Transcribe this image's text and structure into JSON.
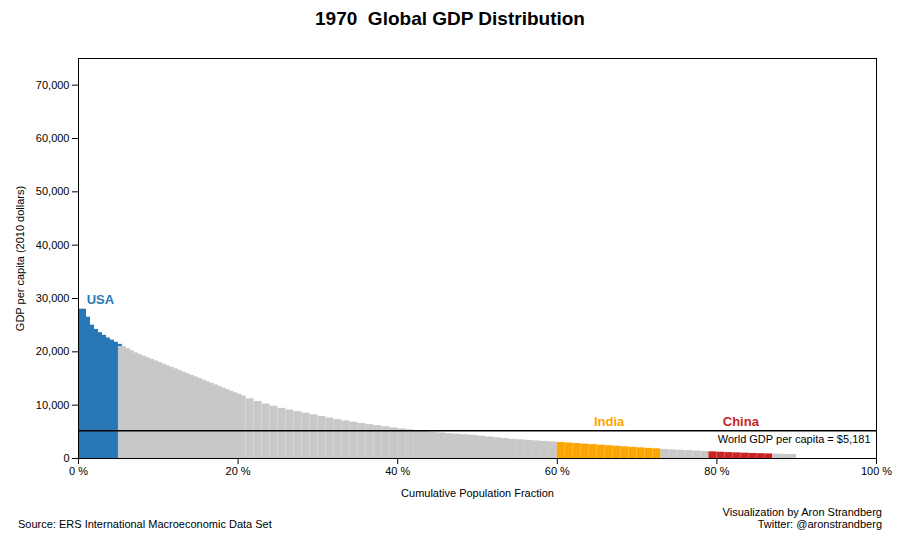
{
  "chart_data": {
    "type": "histogram",
    "title": "1970  Global GDP Distribution",
    "xlabel": "Cumulative Population Fraction",
    "ylabel": "GDP per capita (2010 dollars)",
    "x": [
      0.0,
      0.005,
      0.01,
      0.015,
      0.02,
      0.025,
      0.03,
      0.035,
      0.04,
      0.045,
      0.05,
      0.055,
      0.06,
      0.065,
      0.07,
      0.075,
      0.08,
      0.085,
      0.09,
      0.095,
      0.1,
      0.105,
      0.11,
      0.115,
      0.12,
      0.125,
      0.13,
      0.135,
      0.14,
      0.145,
      0.15,
      0.155,
      0.16,
      0.165,
      0.17,
      0.175,
      0.18,
      0.185,
      0.19,
      0.195,
      0.2,
      0.21,
      0.22,
      0.23,
      0.24,
      0.25,
      0.26,
      0.27,
      0.28,
      0.29,
      0.3,
      0.31,
      0.32,
      0.33,
      0.34,
      0.35,
      0.36,
      0.37,
      0.38,
      0.39,
      0.4,
      0.41,
      0.42,
      0.43,
      0.44,
      0.45,
      0.46,
      0.47,
      0.48,
      0.49,
      0.5,
      0.51,
      0.52,
      0.53,
      0.54,
      0.55,
      0.56,
      0.57,
      0.58,
      0.59,
      0.6,
      0.61,
      0.62,
      0.63,
      0.64,
      0.65,
      0.66,
      0.67,
      0.68,
      0.69,
      0.7,
      0.71,
      0.72,
      0.73,
      0.74,
      0.75,
      0.76,
      0.77,
      0.78,
      0.79,
      0.8,
      0.81,
      0.82,
      0.83,
      0.84,
      0.85,
      0.86,
      0.87,
      0.88,
      0.89
    ],
    "bin_width": 0.01,
    "values": [
      28000,
      26500,
      25000,
      24200,
      23600,
      23100,
      22600,
      22200,
      21800,
      21400,
      21000,
      20600,
      20200,
      19800,
      19500,
      19200,
      18900,
      18600,
      18300,
      18000,
      17700,
      17400,
      17100,
      16800,
      16500,
      16200,
      15900,
      15600,
      15300,
      15000,
      14700,
      14400,
      14100,
      13800,
      13500,
      13200,
      12900,
      12600,
      12300,
      12000,
      11700,
      11200,
      10700,
      10200,
      9800,
      9400,
      9100,
      8800,
      8500,
      8200,
      7900,
      7600,
      7300,
      7050,
      6800,
      6550,
      6350,
      6150,
      5950,
      5750,
      5550,
      5400,
      5250,
      5100,
      4950,
      4800,
      4650,
      4550,
      4450,
      4350,
      4200,
      4050,
      3900,
      3750,
      3600,
      3500,
      3400,
      3300,
      3200,
      3100,
      3000,
      2900,
      2800,
      2700,
      2600,
      2500,
      2400,
      2300,
      2200,
      2100,
      2000,
      1900,
      1800,
      1700,
      1600,
      1550,
      1480,
      1400,
      1320,
      1250,
      1180,
      1100,
      1050,
      1000,
      950,
      900,
      860,
      820,
      780,
      750
    ],
    "colors": [
      "#2878b8",
      "#2878b8",
      "#2878b8",
      "#2878b8",
      "#2878b8",
      "#2878b8",
      "#2878b8",
      "#2878b8",
      "#2878b8",
      "#2878b8",
      "#c8c8c8",
      "#c8c8c8",
      "#c8c8c8",
      "#c8c8c8",
      "#c8c8c8",
      "#c8c8c8",
      "#c8c8c8",
      "#c8c8c8",
      "#c8c8c8",
      "#c8c8c8",
      "#c8c8c8",
      "#c8c8c8",
      "#c8c8c8",
      "#c8c8c8",
      "#c8c8c8",
      "#c8c8c8",
      "#c8c8c8",
      "#c8c8c8",
      "#c8c8c8",
      "#c8c8c8",
      "#c8c8c8",
      "#c8c8c8",
      "#c8c8c8",
      "#c8c8c8",
      "#c8c8c8",
      "#c8c8c8",
      "#c8c8c8",
      "#c8c8c8",
      "#c8c8c8",
      "#c8c8c8",
      "#c8c8c8",
      "#c8c8c8",
      "#c8c8c8",
      "#c8c8c8",
      "#c8c8c8",
      "#c8c8c8",
      "#c8c8c8",
      "#c8c8c8",
      "#c8c8c8",
      "#c8c8c8",
      "#c8c8c8",
      "#c8c8c8",
      "#c8c8c8",
      "#c8c8c8",
      "#c8c8c8",
      "#c8c8c8",
      "#c8c8c8",
      "#c8c8c8",
      "#c8c8c8",
      "#c8c8c8",
      "#c8c8c8",
      "#c8c8c8",
      "#c8c8c8",
      "#c8c8c8",
      "#c8c8c8",
      "#c8c8c8",
      "#c8c8c8",
      "#c8c8c8",
      "#c8c8c8",
      "#c8c8c8",
      "#c8c8c8",
      "#c8c8c8",
      "#c8c8c8",
      "#c8c8c8",
      "#c8c8c8",
      "#c8c8c8",
      "#c8c8c8",
      "#c8c8c8",
      "#c8c8c8",
      "#c8c8c8",
      "#FFA500",
      "#FFA500",
      "#FFA500",
      "#FFA500",
      "#FFA500",
      "#FFA500",
      "#FFA500",
      "#FFA500",
      "#FFA500",
      "#FFA500",
      "#FFA500",
      "#FFA500",
      "#FFA500",
      "#c8c8c8",
      "#c8c8c8",
      "#c8c8c8",
      "#c8c8c8",
      "#c8c8c8",
      "#c8c8c8",
      "#CC2222",
      "#CC2222",
      "#CC2222",
      "#CC2222",
      "#CC2222",
      "#CC2222",
      "#CC2222",
      "#CC2222",
      "#c8c8c8",
      "#c8c8c8",
      "#c8c8c8"
    ],
    "xlim": [
      0,
      1.0
    ],
    "ylim": [
      0,
      75000
    ],
    "xticks": [
      {
        "value": 0,
        "label": "0 %"
      },
      {
        "value": 0.2,
        "label": "20 %"
      },
      {
        "value": 0.4,
        "label": "40 %"
      },
      {
        "value": 0.6,
        "label": "60 %"
      },
      {
        "value": 0.8,
        "label": "80 %"
      },
      {
        "value": 1.0,
        "label": "100 %"
      }
    ],
    "yticks": [
      0,
      {
        "value": 10000,
        "label": "10,000"
      },
      {
        "value": 20000,
        "label": "20,000"
      },
      {
        "value": 30000,
        "label": "30,000"
      },
      {
        "value": 40000,
        "label": "40,000"
      },
      {
        "value": 50000,
        "label": "50,000"
      },
      {
        "value": 60000,
        "label": "60,000"
      },
      {
        "value": 70000,
        "label": "70,000"
      }
    ],
    "grid": false,
    "hlines": [
      {
        "value": 5181,
        "label": "World GDP per capita = $5,181",
        "color": "#000000"
      }
    ],
    "annotations": [
      {
        "text": "USA",
        "color": "#2878b8"
      },
      {
        "text": "India",
        "color": "#FFA500"
      },
      {
        "text": "China",
        "color": "#CC2222"
      }
    ],
    "source": "Source: ERS International Macroeconomic Data Set",
    "credits": [
      "Visualization by Aron Strandberg",
      "Twitter: @aronstrandberg"
    ]
  }
}
